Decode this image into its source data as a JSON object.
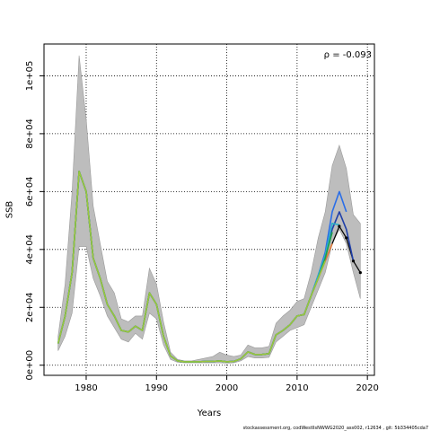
{
  "chart_data": {
    "type": "line",
    "xlabel": "Years",
    "ylabel": "SSB",
    "xlim": [
      1974,
      2021
    ],
    "ylim": [
      -3500,
      111000
    ],
    "x_ticks": [
      1980,
      1990,
      2000,
      2010,
      2020
    ],
    "y_ticks": [
      0,
      20000,
      40000,
      60000,
      80000,
      100000
    ],
    "y_tick_labels": [
      "0e+00",
      "2e+04",
      "4e+04",
      "6e+04",
      "8e+04",
      "1e+05"
    ],
    "grid": "dotted",
    "annotation": "ρ = -0.093",
    "footer": "stockassessment.org, codWestIlsNWWG2020_ass002, r12634 , git: 5b334405cda7",
    "band": {
      "x": [
        1976,
        1977,
        1978,
        1979,
        1980,
        1981,
        1982,
        1983,
        1984,
        1985,
        1986,
        1987,
        1988,
        1989,
        1990,
        1991,
        1992,
        1993,
        1994,
        1995,
        1996,
        1997,
        1998,
        1999,
        2000,
        2001,
        2002,
        2003,
        2004,
        2005,
        2006,
        2007,
        2008,
        2009,
        2010,
        2011,
        2012,
        2013,
        2014,
        2015,
        2016,
        2017,
        2018,
        2019
      ],
      "upper": [
        10000,
        28000,
        60000,
        107000,
        85000,
        55000,
        42000,
        29000,
        25000,
        16000,
        15000,
        17000,
        17000,
        33500,
        28000,
        15000,
        4500,
        2000,
        1500,
        1500,
        2000,
        2500,
        3000,
        4500,
        3500,
        3000,
        3500,
        7000,
        6000,
        6000,
        6500,
        14500,
        17000,
        19000,
        22000,
        23000,
        32000,
        44000,
        53000,
        69000,
        76000,
        68000,
        52000,
        49000
      ],
      "lower": [
        5000,
        10000,
        18000,
        41000,
        41000,
        30000,
        24000,
        17000,
        13000,
        9000,
        8000,
        11000,
        9000,
        18000,
        16000,
        7000,
        2000,
        1000,
        800,
        800,
        800,
        800,
        800,
        800,
        700,
        800,
        1500,
        3000,
        2500,
        2500,
        2700,
        8000,
        10000,
        12000,
        13000,
        14000,
        20000,
        26000,
        32000,
        42000,
        47000,
        42000,
        32000,
        23000
      ]
    },
    "series": [
      {
        "color": "#000000",
        "width": 1.2,
        "x": [
          1976,
          1977,
          1978,
          1979,
          1980,
          1981,
          1982,
          1983,
          1984,
          1985,
          1986,
          1987,
          1988,
          1989,
          1990,
          1991,
          1992,
          1993,
          1994,
          1995,
          1996,
          1997,
          1998,
          1999,
          2000,
          2001,
          2002,
          2003,
          2004,
          2005,
          2006,
          2007,
          2008,
          2009,
          2010,
          2011,
          2012,
          2013,
          2014,
          2015,
          2016,
          2017,
          2018,
          2019
        ],
        "values": [
          7500,
          17000,
          32000,
          67000,
          60000,
          37000,
          30000,
          21000,
          17000,
          12000,
          11500,
          13500,
          12000,
          25000,
          21000,
          10000,
          3200,
          1500,
          1200,
          1200,
          1200,
          1300,
          1300,
          1500,
          1200,
          1300,
          2200,
          4600,
          3700,
          3700,
          4000,
          10500,
          12000,
          14000,
          17000,
          17500,
          24000,
          30000,
          36000,
          42000,
          48000,
          44000,
          36000,
          32000
        ]
      },
      {
        "color": "#e07b39",
        "width": 1.6,
        "x": [
          1976,
          1977,
          1978,
          1979,
          1980,
          1981,
          1982,
          1983,
          1984,
          1985,
          1986,
          1987,
          1988,
          1989,
          1990,
          1991,
          1992,
          1993,
          1994,
          1995,
          1996,
          1997,
          1998,
          1999,
          2000,
          2001,
          2002,
          2003,
          2004,
          2005,
          2006,
          2007,
          2008,
          2009,
          2010,
          2011,
          2012,
          2013,
          2014,
          2015
        ],
        "values": [
          7500,
          17000,
          32000,
          67000,
          60000,
          37000,
          30000,
          21000,
          17000,
          12000,
          11500,
          13500,
          12000,
          25000,
          21000,
          10000,
          3200,
          1500,
          1200,
          1200,
          1200,
          1300,
          1300,
          1500,
          1200,
          1300,
          2200,
          4600,
          3700,
          3700,
          4000,
          10500,
          12000,
          14000,
          17000,
          17500,
          24000,
          30000,
          36000,
          42000
        ]
      },
      {
        "color": "#1f3fa8",
        "width": 1.6,
        "x": [
          1976,
          1977,
          1978,
          1979,
          1980,
          1981,
          1982,
          1983,
          1984,
          1985,
          1986,
          1987,
          1988,
          1989,
          1990,
          1991,
          1992,
          1993,
          1994,
          1995,
          1996,
          1997,
          1998,
          1999,
          2000,
          2001,
          2002,
          2003,
          2004,
          2005,
          2006,
          2007,
          2008,
          2009,
          2010,
          2011,
          2012,
          2013,
          2014,
          2015,
          2016,
          2017,
          2018
        ],
        "values": [
          7500,
          17000,
          32000,
          67000,
          60000,
          37000,
          30000,
          21000,
          17000,
          12000,
          11500,
          13500,
          12000,
          25000,
          21000,
          10000,
          3200,
          1500,
          1200,
          1200,
          1200,
          1300,
          1300,
          1500,
          1200,
          1300,
          2200,
          4600,
          3700,
          3700,
          4000,
          10500,
          12000,
          14000,
          17000,
          17500,
          24000,
          31000,
          38000,
          47000,
          53000,
          47000,
          36000
        ]
      },
      {
        "color": "#2a6ee8",
        "width": 1.6,
        "x": [
          1976,
          1977,
          1978,
          1979,
          1980,
          1981,
          1982,
          1983,
          1984,
          1985,
          1986,
          1987,
          1988,
          1989,
          1990,
          1991,
          1992,
          1993,
          1994,
          1995,
          1996,
          1997,
          1998,
          1999,
          2000,
          2001,
          2002,
          2003,
          2004,
          2005,
          2006,
          2007,
          2008,
          2009,
          2010,
          2011,
          2012,
          2013,
          2014,
          2015,
          2016,
          2017
        ],
        "values": [
          7500,
          17000,
          32000,
          67000,
          60000,
          37000,
          30000,
          21000,
          17000,
          12000,
          11500,
          13500,
          12000,
          25000,
          21000,
          10000,
          3200,
          1500,
          1200,
          1200,
          1200,
          1300,
          1300,
          1500,
          1200,
          1300,
          2200,
          4600,
          3700,
          3700,
          4000,
          10500,
          12000,
          14000,
          17000,
          17500,
          24000,
          31000,
          39000,
          53000,
          60000,
          53000
        ]
      },
      {
        "color": "#2ab0c8",
        "width": 1.6,
        "x": [
          1976,
          1977,
          1978,
          1979,
          1980,
          1981,
          1982,
          1983,
          1984,
          1985,
          1986,
          1987,
          1988,
          1989,
          1990,
          1991,
          1992,
          1993,
          1994,
          1995,
          1996,
          1997,
          1998,
          1999,
          2000,
          2001,
          2002,
          2003,
          2004,
          2005,
          2006,
          2007,
          2008,
          2009,
          2010,
          2011,
          2012,
          2013,
          2014,
          2015,
          2016
        ],
        "values": [
          7500,
          17000,
          32000,
          67000,
          60000,
          37000,
          30000,
          21000,
          17000,
          12000,
          11500,
          13500,
          12000,
          25000,
          21000,
          10000,
          3200,
          1500,
          1200,
          1200,
          1200,
          1300,
          1300,
          1500,
          1200,
          1300,
          2200,
          4600,
          3700,
          3700,
          4000,
          10500,
          12000,
          14000,
          17000,
          17500,
          24000,
          31000,
          38000,
          49000,
          48500
        ]
      },
      {
        "color": "#1f9e4a",
        "width": 1.6,
        "x": [
          1976,
          1977,
          1978,
          1979,
          1980,
          1981,
          1982,
          1983,
          1984,
          1985,
          1986,
          1987,
          1988,
          1989,
          1990,
          1991,
          1992,
          1993,
          1994,
          1995,
          1996,
          1997,
          1998,
          1999,
          2000,
          2001,
          2002,
          2003,
          2004,
          2005,
          2006,
          2007,
          2008,
          2009,
          2010,
          2011,
          2012,
          2013,
          2014,
          2015
        ],
        "values": [
          7500,
          17000,
          32000,
          67000,
          60000,
          37000,
          30000,
          21000,
          17000,
          12000,
          11500,
          13500,
          12000,
          25000,
          21000,
          10000,
          3200,
          1500,
          1200,
          1200,
          1200,
          1300,
          1300,
          1500,
          1200,
          1300,
          2200,
          4600,
          3700,
          3700,
          4000,
          10500,
          12000,
          14000,
          17000,
          17500,
          24000,
          30000,
          37000,
          46000
        ]
      },
      {
        "color": "#9bc53d",
        "width": 1.6,
        "x": [
          1976,
          1977,
          1978,
          1979,
          1980,
          1981,
          1982,
          1983,
          1984,
          1985,
          1986,
          1987,
          1988,
          1989,
          1990,
          1991,
          1992,
          1993,
          1994,
          1995,
          1996,
          1997,
          1998,
          1999,
          2000,
          2001,
          2002,
          2003,
          2004,
          2005,
          2006,
          2007,
          2008,
          2009,
          2010,
          2011,
          2012,
          2013,
          2014
        ],
        "values": [
          7500,
          17000,
          32000,
          67000,
          60000,
          37000,
          30000,
          21000,
          17000,
          12000,
          11500,
          13500,
          12000,
          25000,
          21000,
          10000,
          3200,
          1500,
          1200,
          1200,
          1200,
          1300,
          1300,
          1500,
          1200,
          1300,
          2200,
          4600,
          3700,
          3700,
          4000,
          10500,
          12000,
          14000,
          17000,
          17500,
          24000,
          30000,
          36000
        ]
      }
    ]
  }
}
